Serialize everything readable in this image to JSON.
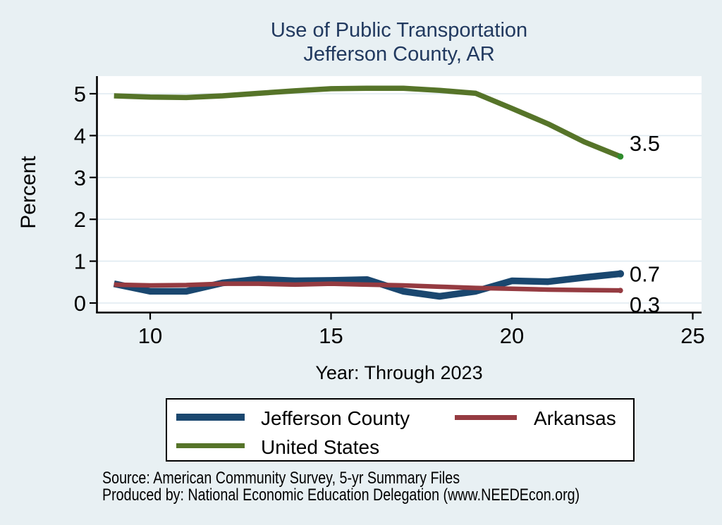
{
  "figure": {
    "title_line1": "Use of Public Transportation",
    "title_line2": "Jefferson County, AR",
    "y_axis_title": "Percent",
    "x_axis_subtitle": "Year: Through 2023",
    "source_line1": "Source: American Community Survey, 5-yr Summary Files",
    "source_line2": "Produced by: National Economic Education Delegation (www.NEEDEcon.org)",
    "colors": {
      "background": "#e8f0f3",
      "plot_background": "#ffffff",
      "gridline": "#dfeaf0",
      "axis": "#000000",
      "title_text": "#21395f",
      "navy": "#1a476f",
      "maroon": "#953b41",
      "olive_green": "#567429"
    }
  },
  "chart_data": {
    "type": "line",
    "title": "Use of Public Transportation",
    "subtitle": "Jefferson County, AR",
    "xlabel": "Year: Through 2023",
    "ylabel": "Percent",
    "xlim": [
      8.5,
      25.6
    ],
    "ylim": [
      -0.25,
      5.65
    ],
    "grid": true,
    "x_ticks": [
      10,
      15,
      20,
      25
    ],
    "y_ticks": [
      0,
      1,
      2,
      3,
      4,
      5
    ],
    "x": [
      9,
      10,
      11,
      12,
      13,
      14,
      15,
      16,
      17,
      18,
      19,
      20,
      21,
      22,
      23
    ],
    "series": [
      {
        "name": "Jefferson County",
        "color": "#1a476f",
        "line_width": 9.5,
        "end_label": "0.7",
        "values": [
          0.46,
          0.28,
          0.28,
          0.48,
          0.57,
          0.53,
          0.54,
          0.56,
          0.28,
          0.16,
          0.28,
          0.53,
          0.51,
          0.61,
          0.7
        ]
      },
      {
        "name": "Arkansas",
        "color": "#953b41",
        "line_width": 6.5,
        "end_label": "0.3",
        "values": [
          0.44,
          0.42,
          0.43,
          0.46,
          0.46,
          0.44,
          0.46,
          0.44,
          0.42,
          0.39,
          0.36,
          0.34,
          0.32,
          0.31,
          0.3
        ]
      },
      {
        "name": "United States",
        "color": "#567429",
        "line_width": 7.5,
        "marker_color": "#2f8c2d",
        "end_label": "3.5",
        "values": [
          4.95,
          4.92,
          4.91,
          4.95,
          5.01,
          5.07,
          5.12,
          5.13,
          5.13,
          5.08,
          5.01,
          4.65,
          4.28,
          3.85,
          3.5
        ]
      }
    ],
    "legend": {
      "position": "bottom",
      "entries": [
        "Jefferson County",
        "Arkansas",
        "United States"
      ]
    }
  }
}
